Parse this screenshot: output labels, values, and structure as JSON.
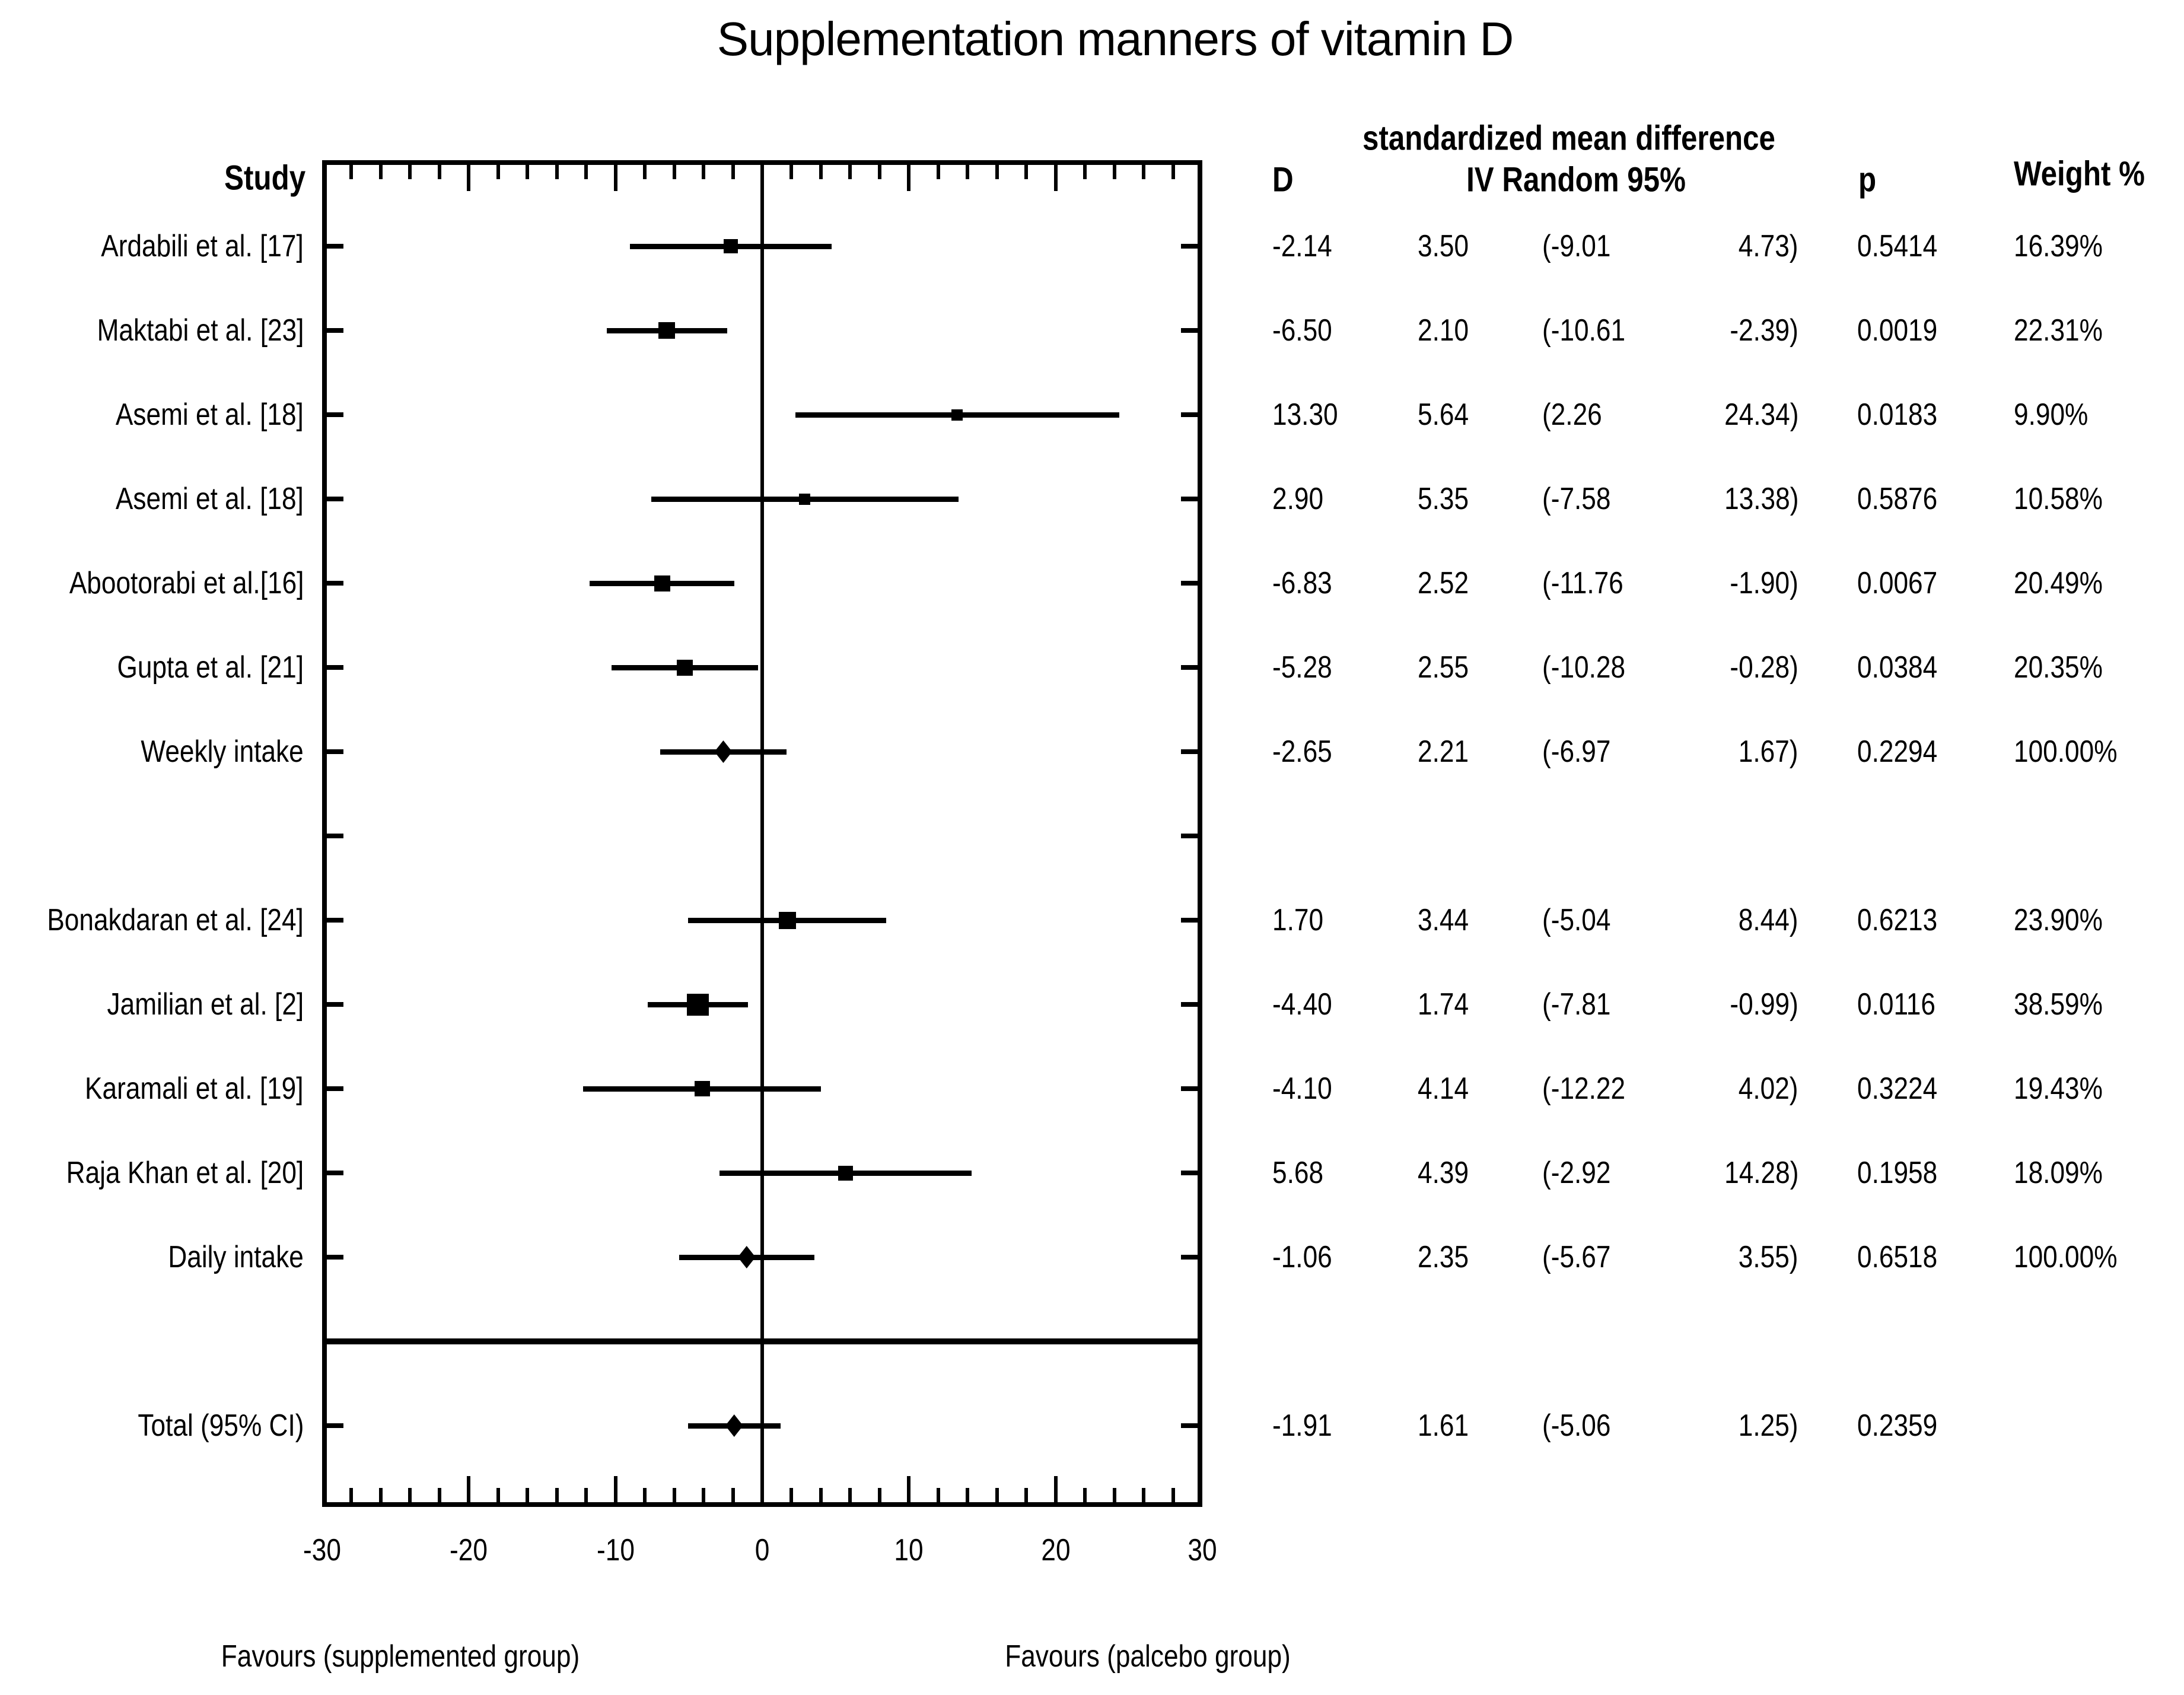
{
  "title": "Supplementation manners of vitamin D",
  "headers": {
    "study": "Study",
    "smd_top": "standardized mean difference",
    "d": "D",
    "iv": "IV Random 95%",
    "p": "p",
    "weight": "Weight %"
  },
  "axis": {
    "min": -30,
    "max": 30,
    "minor_step": 2,
    "major_step": 10,
    "ticks": [
      {
        "v": -30,
        "label": "-30"
      },
      {
        "v": -20,
        "label": "-20"
      },
      {
        "v": -10,
        "label": "-10"
      },
      {
        "v": 0,
        "label": "0"
      },
      {
        "v": 10,
        "label": "10"
      },
      {
        "v": 20,
        "label": "20"
      },
      {
        "v": 30,
        "label": "30"
      }
    ]
  },
  "footer": {
    "left": "Favours (supplemented group)",
    "right": "Favours (palcebo group)"
  },
  "chart_data": {
    "type": "forest",
    "x_range": [
      -30,
      30
    ],
    "zero_line": 0,
    "rows": [
      {
        "label": "Ardabili et al. [17]",
        "kind": "study",
        "marker": "square",
        "d": -2.14,
        "se": 3.5,
        "ci": [
          -9.01,
          4.73
        ],
        "weight_pct": 16.39,
        "cells": {
          "d": "-2.14",
          "se": "3.50",
          "ci_low": "(-9.01",
          "ci_high": "4.73)",
          "p": "0.5414",
          "weight": "16.39%"
        }
      },
      {
        "label": "Maktabi et al. [23]",
        "kind": "study",
        "marker": "square",
        "d": -6.5,
        "se": 2.1,
        "ci": [
          -10.61,
          -2.39
        ],
        "weight_pct": 22.31,
        "cells": {
          "d": "-6.50",
          "se": "2.10",
          "ci_low": "(-10.61",
          "ci_high": "-2.39)",
          "p": "0.0019",
          "weight": "22.31%"
        }
      },
      {
        "label": "Asemi et al. [18]",
        "kind": "study",
        "marker": "square",
        "d": 13.3,
        "se": 5.64,
        "ci": [
          2.26,
          24.34
        ],
        "weight_pct": 9.9,
        "cells": {
          "d": "13.30",
          "se": "5.64",
          "ci_low": "(2.26",
          "ci_high": "24.34)",
          "p": "0.0183",
          "weight": "9.90%"
        }
      },
      {
        "label": "Asemi et al. [18]",
        "kind": "study",
        "marker": "square",
        "d": 2.9,
        "se": 5.35,
        "ci": [
          -7.58,
          13.38
        ],
        "weight_pct": 10.58,
        "cells": {
          "d": "2.90",
          "se": "5.35",
          "ci_low": "(-7.58",
          "ci_high": "13.38)",
          "p": "0.5876",
          "weight": "10.58%"
        }
      },
      {
        "label": "Abootorabi et al.[16]",
        "kind": "study",
        "marker": "square",
        "d": -6.83,
        "se": 2.52,
        "ci": [
          -11.76,
          -1.9
        ],
        "weight_pct": 20.49,
        "cells": {
          "d": "-6.83",
          "se": "2.52",
          "ci_low": "(-11.76",
          "ci_high": "-1.90)",
          "p": "0.0067",
          "weight": "20.49%"
        }
      },
      {
        "label": "Gupta et al. [21]",
        "kind": "study",
        "marker": "square",
        "d": -5.28,
        "se": 2.55,
        "ci": [
          -10.28,
          -0.28
        ],
        "weight_pct": 20.35,
        "cells": {
          "d": "-5.28",
          "se": "2.55",
          "ci_low": "(-10.28",
          "ci_high": "-0.28)",
          "p": "0.0384",
          "weight": "20.35%"
        }
      },
      {
        "label": "Weekly intake",
        "kind": "summary",
        "marker": "diamond",
        "d": -2.65,
        "se": 2.21,
        "ci": [
          -6.97,
          1.67
        ],
        "weight_pct": 100.0,
        "cells": {
          "d": "-2.65",
          "se": "2.21",
          "ci_low": "(-6.97",
          "ci_high": "1.67)",
          "p": "0.2294",
          "weight": "100.00%"
        }
      },
      {
        "kind": "blank"
      },
      {
        "label": "Bonakdaran et al. [24]",
        "kind": "study",
        "marker": "square",
        "d": 1.7,
        "se": 3.44,
        "ci": [
          -5.04,
          8.44
        ],
        "weight_pct": 23.9,
        "cells": {
          "d": "1.70",
          "se": "3.44",
          "ci_low": "(-5.04",
          "ci_high": "8.44)",
          "p": "0.6213",
          "weight": "23.90%"
        }
      },
      {
        "label": "Jamilian et al. [2]",
        "kind": "study",
        "marker": "square",
        "d": -4.4,
        "se": 1.74,
        "ci": [
          -7.81,
          -0.99
        ],
        "weight_pct": 38.59,
        "cells": {
          "d": "-4.40",
          "se": "1.74",
          "ci_low": "(-7.81",
          "ci_high": "-0.99)",
          "p": "0.0116",
          "weight": "38.59%"
        }
      },
      {
        "label": "Karamali et al. [19]",
        "kind": "study",
        "marker": "square",
        "d": -4.1,
        "se": 4.14,
        "ci": [
          -12.22,
          4.02
        ],
        "weight_pct": 19.43,
        "cells": {
          "d": "-4.10",
          "se": "4.14",
          "ci_low": "(-12.22",
          "ci_high": "4.02)",
          "p": "0.3224",
          "weight": "19.43%"
        }
      },
      {
        "label": "Raja Khan et al. [20]",
        "kind": "study",
        "marker": "square",
        "d": 5.68,
        "se": 4.39,
        "ci": [
          -2.92,
          14.28
        ],
        "weight_pct": 18.09,
        "cells": {
          "d": "5.68",
          "se": "4.39",
          "ci_low": "(-2.92",
          "ci_high": "14.28)",
          "p": "0.1958",
          "weight": "18.09%"
        }
      },
      {
        "label": "Daily intake",
        "kind": "summary",
        "marker": "diamond",
        "d": -1.06,
        "se": 2.35,
        "ci": [
          -5.67,
          3.55
        ],
        "weight_pct": 100.0,
        "cells": {
          "d": "-1.06",
          "se": "2.35",
          "ci_low": "(-5.67",
          "ci_high": "3.55)",
          "p": "0.6518",
          "weight": "100.00%"
        }
      },
      {
        "kind": "blank",
        "separator": true
      },
      {
        "label": "Total (95% CI)",
        "kind": "total",
        "marker": "diamond",
        "d": -1.91,
        "se": 1.61,
        "ci": [
          -5.06,
          1.25
        ],
        "cells": {
          "d": "-1.91",
          "se": "1.61",
          "ci_low": "(-5.06",
          "ci_high": "1.25)",
          "p": "0.2359",
          "weight": ""
        }
      }
    ]
  }
}
